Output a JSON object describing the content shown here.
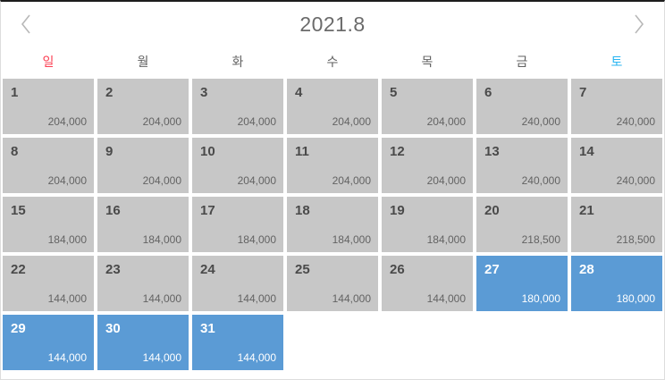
{
  "header": {
    "title": "2021.8",
    "prev_icon": "chevron-left",
    "next_icon": "chevron-right"
  },
  "weekdays": [
    {
      "label": "일",
      "color": "#fb3e52"
    },
    {
      "label": "월",
      "color": "#616161"
    },
    {
      "label": "화",
      "color": "#616161"
    },
    {
      "label": "수",
      "color": "#616161"
    },
    {
      "label": "목",
      "color": "#616161"
    },
    {
      "label": "금",
      "color": "#616161"
    },
    {
      "label": "토",
      "color": "#29b5f2"
    }
  ],
  "colors": {
    "top_border": "#1c1c1c",
    "outer_border": "#dddddd",
    "title_color": "#6b6b6b",
    "weekday_color": "#616161",
    "chevron_color": "#b8b8b8",
    "cell_default_bg": "#c7c7c7",
    "cell_selected_bg": "#5b9bd5",
    "daynum_color": "#4a4a4a",
    "price_color": "#636363",
    "selected_text": "#ffffff"
  },
  "weeks": [
    [
      {
        "day": "1",
        "price": "204,000",
        "selected": false
      },
      {
        "day": "2",
        "price": "204,000",
        "selected": false
      },
      {
        "day": "3",
        "price": "204,000",
        "selected": false
      },
      {
        "day": "4",
        "price": "204,000",
        "selected": false
      },
      {
        "day": "5",
        "price": "204,000",
        "selected": false
      },
      {
        "day": "6",
        "price": "240,000",
        "selected": false
      },
      {
        "day": "7",
        "price": "240,000",
        "selected": false
      }
    ],
    [
      {
        "day": "8",
        "price": "204,000",
        "selected": false
      },
      {
        "day": "9",
        "price": "204,000",
        "selected": false
      },
      {
        "day": "10",
        "price": "204,000",
        "selected": false
      },
      {
        "day": "11",
        "price": "204,000",
        "selected": false
      },
      {
        "day": "12",
        "price": "204,000",
        "selected": false
      },
      {
        "day": "13",
        "price": "240,000",
        "selected": false
      },
      {
        "day": "14",
        "price": "240,000",
        "selected": false
      }
    ],
    [
      {
        "day": "15",
        "price": "184,000",
        "selected": false
      },
      {
        "day": "16",
        "price": "184,000",
        "selected": false
      },
      {
        "day": "17",
        "price": "184,000",
        "selected": false
      },
      {
        "day": "18",
        "price": "184,000",
        "selected": false
      },
      {
        "day": "19",
        "price": "184,000",
        "selected": false
      },
      {
        "day": "20",
        "price": "218,500",
        "selected": false
      },
      {
        "day": "21",
        "price": "218,500",
        "selected": false
      }
    ],
    [
      {
        "day": "22",
        "price": "144,000",
        "selected": false
      },
      {
        "day": "23",
        "price": "144,000",
        "selected": false
      },
      {
        "day": "24",
        "price": "144,000",
        "selected": false
      },
      {
        "day": "25",
        "price": "144,000",
        "selected": false
      },
      {
        "day": "26",
        "price": "144,000",
        "selected": false
      },
      {
        "day": "27",
        "price": "180,000",
        "selected": true
      },
      {
        "day": "28",
        "price": "180,000",
        "selected": true
      }
    ],
    [
      {
        "day": "29",
        "price": "144,000",
        "selected": true
      },
      {
        "day": "30",
        "price": "144,000",
        "selected": true
      },
      {
        "day": "31",
        "price": "144,000",
        "selected": true
      },
      null,
      null,
      null,
      null
    ]
  ]
}
